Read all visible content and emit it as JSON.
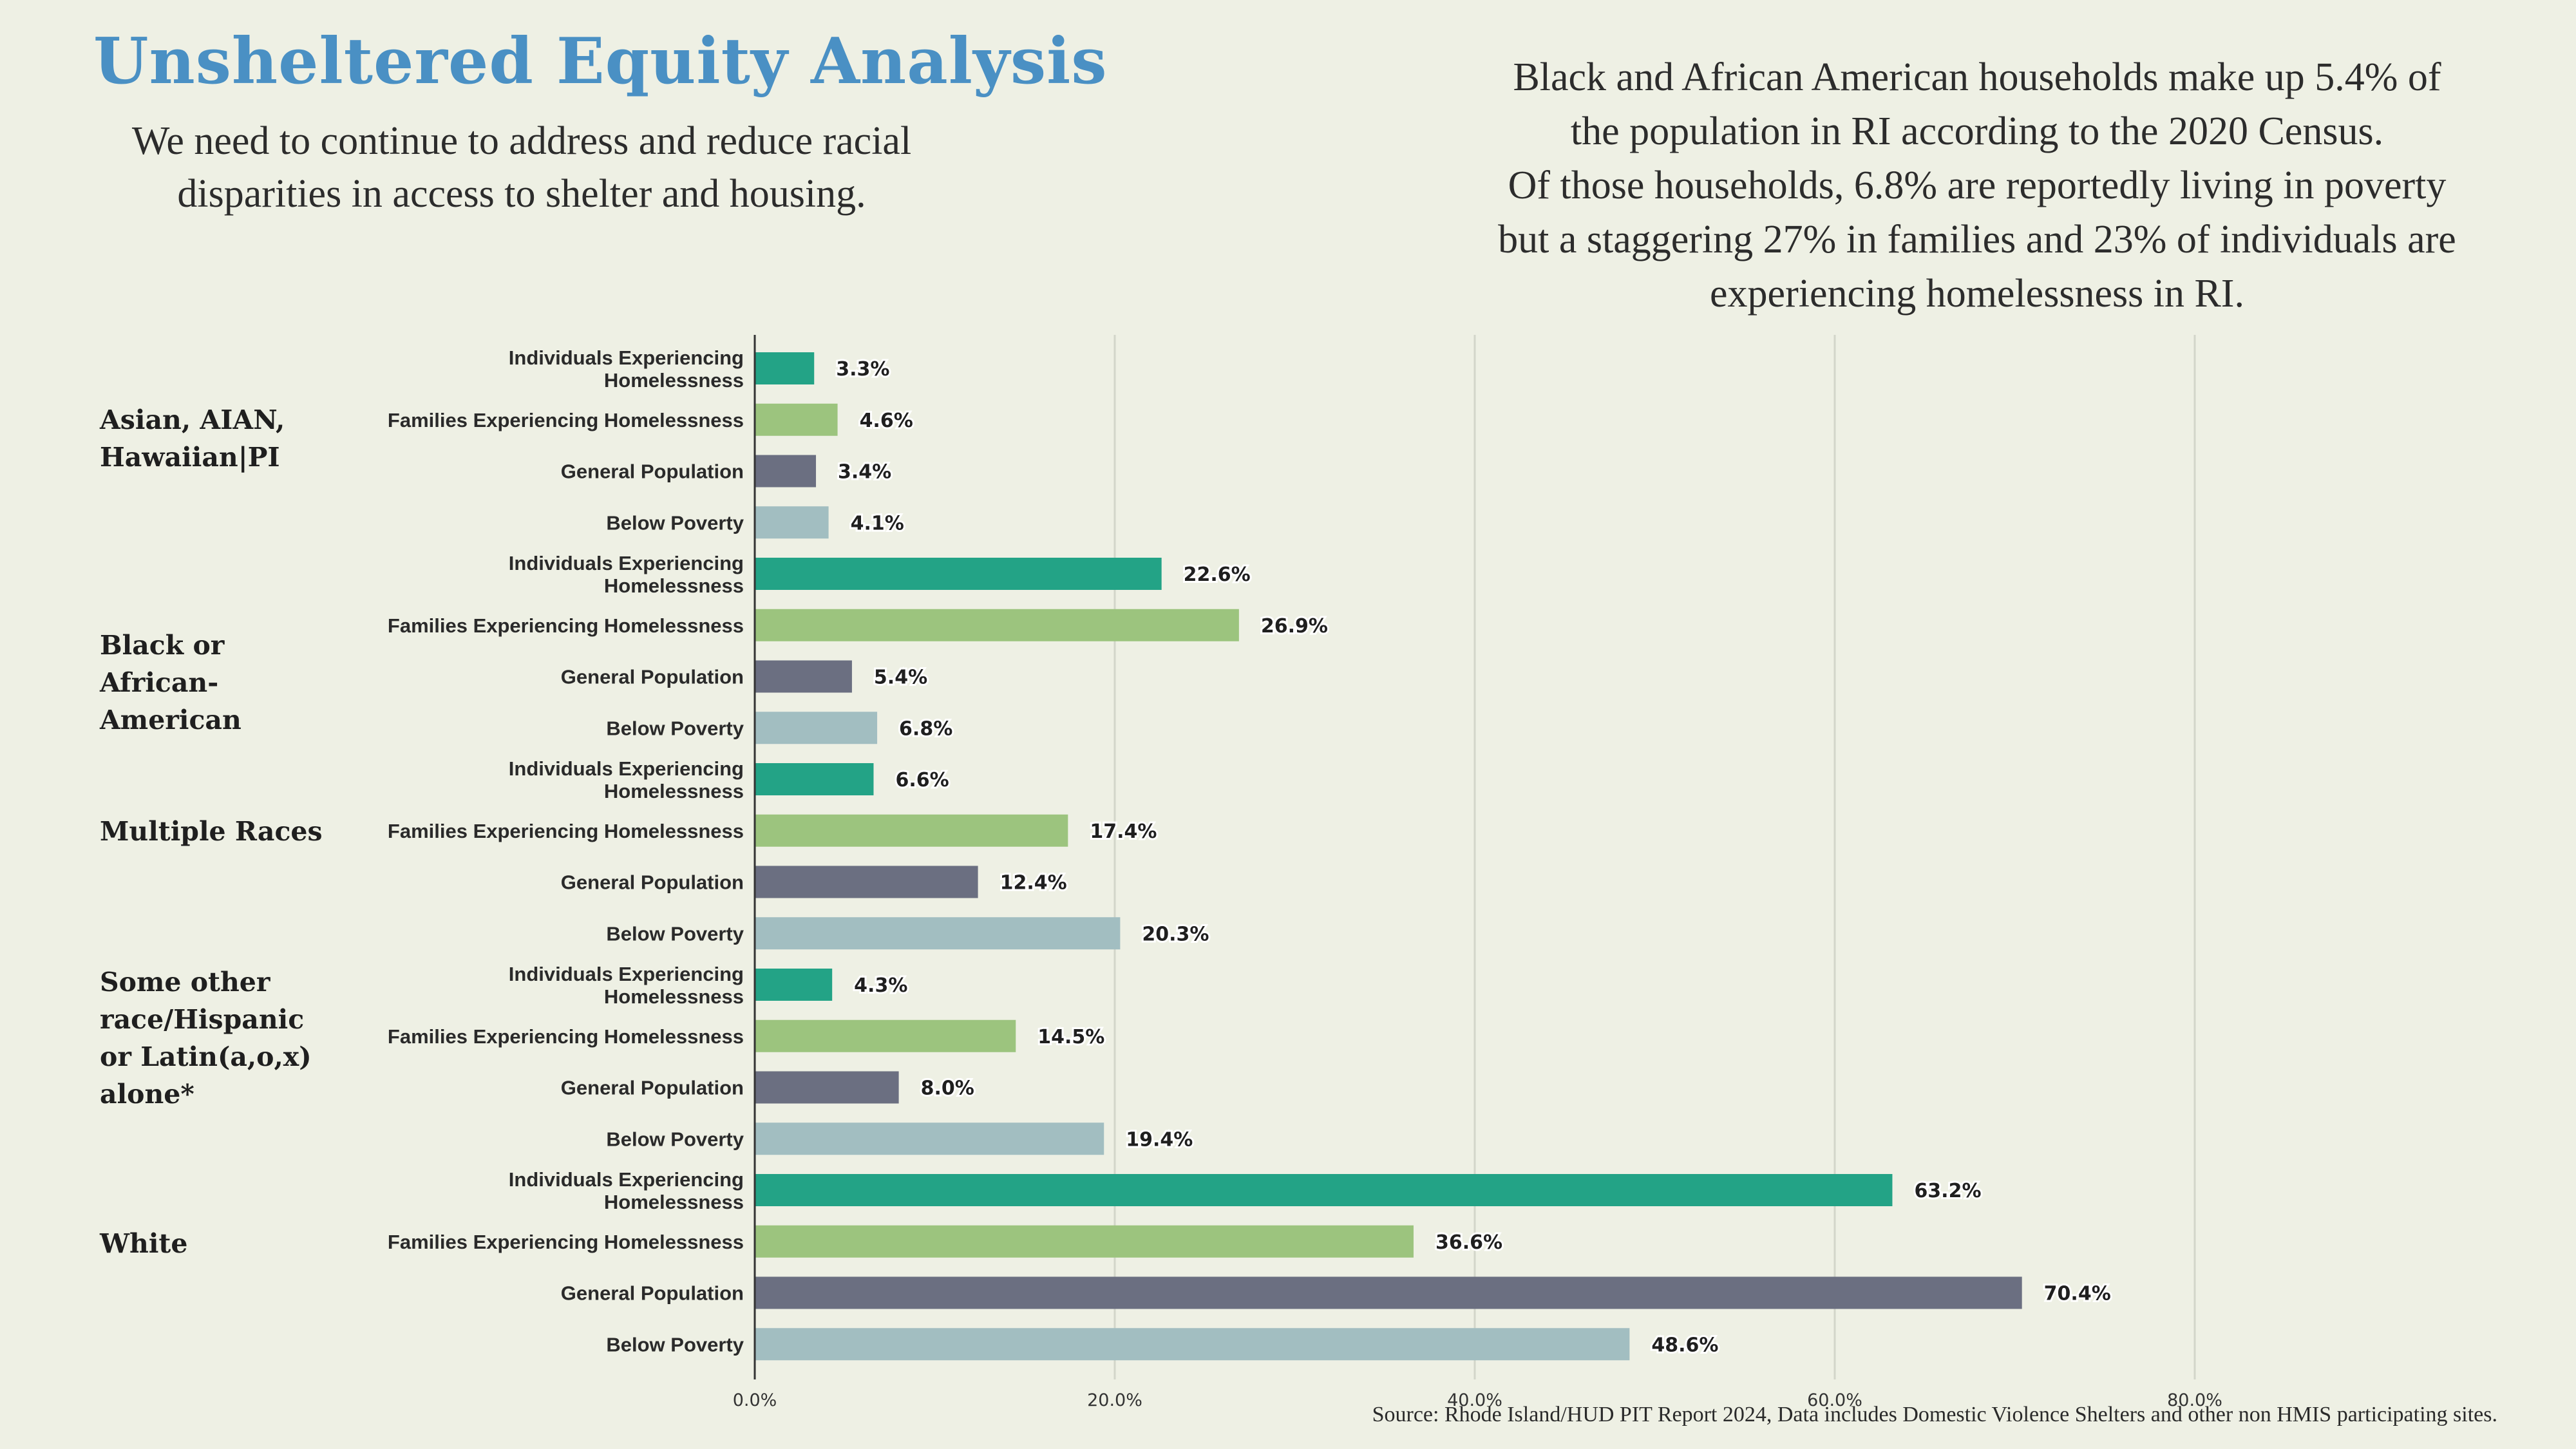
{
  "header": {
    "title": "Unsheltered Equity Analysis",
    "subtitle": "We need to continue to address and reduce racial disparities in access to shelter and housing.",
    "callout_lines": [
      "Black and African American households make up 5.4% of",
      "the population in RI according to the 2020 Census.",
      "Of those households, 6.8% are reportedly living in poverty",
      "but a staggering 27% in families and 23% of individuals are",
      "experiencing homelessness in RI."
    ]
  },
  "source": "Source: Rhode Island/HUD PIT Report 2024, Data includes Domestic Violence Shelters and other non HMIS participating sites.",
  "colors": {
    "Individuals Experiencing Homelessness": "#23a386",
    "Families Experiencing Homelessness": "#9cc47e",
    "General Population": "#6b6f81",
    "Below Poverty": "#a2bec1",
    "grid": "#d3d6ca",
    "axis": "#333333"
  },
  "chart_data": {
    "type": "bar",
    "orientation": "horizontal",
    "groups": [
      "Asian, AIAN, Hawaiian|PI",
      "Black or African-American",
      "Multiple Races",
      "Some other race/Hispanic or Latin(a,o,x) alone*",
      "White"
    ],
    "categories": [
      "Individuals Experiencing Homelessness",
      "Families Experiencing Homelessness",
      "General Population",
      "Below Poverty"
    ],
    "values": [
      [
        3.3,
        4.6,
        3.4,
        4.1
      ],
      [
        22.6,
        26.9,
        5.4,
        6.8
      ],
      [
        6.6,
        17.4,
        12.4,
        20.3
      ],
      [
        4.3,
        14.5,
        8.0,
        19.4
      ],
      [
        63.2,
        36.6,
        70.4,
        48.6
      ]
    ],
    "value_labels": [
      [
        "3.3%",
        "4.6%",
        "3.4%",
        "4.1%"
      ],
      [
        "22.6%",
        "26.9%",
        "5.4%",
        "6.8%"
      ],
      [
        "6.6%",
        "17.4%",
        "12.4%",
        "20.3%"
      ],
      [
        "4.3%",
        "14.5%",
        "8.0%",
        "19.4%"
      ],
      [
        "63.2%",
        "36.6%",
        "70.4%",
        "48.6%"
      ]
    ],
    "xlim": [
      0,
      100
    ],
    "xticks": [
      0,
      20,
      40,
      60,
      80
    ],
    "xtick_labels": [
      "0.0%",
      "20.0%",
      "40.0%",
      "60.0%",
      "80.0%"
    ],
    "grid": true
  }
}
